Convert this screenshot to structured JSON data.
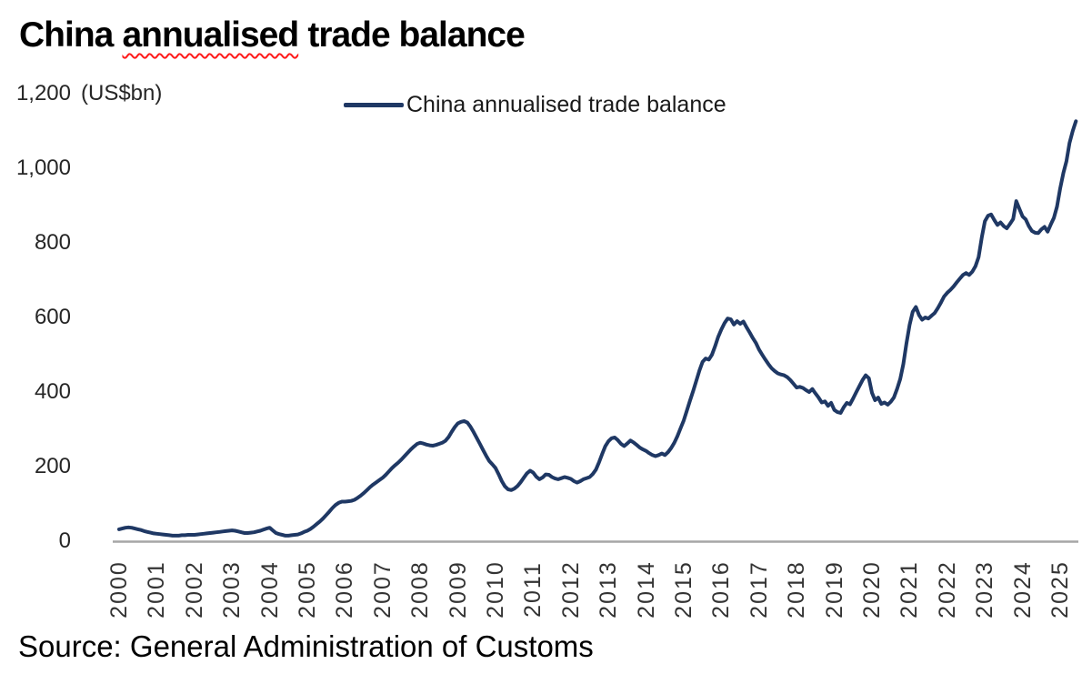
{
  "title": {
    "prefix": "China",
    "misspelled": "annualised",
    "suffix": "trade balance"
  },
  "unit_label": "(US$bn)",
  "legend": {
    "label": "China annualised trade balance"
  },
  "source": "Source: General Administration of Customs",
  "colors": {
    "line": "#1F3864",
    "axis": "#A6A6A6",
    "squiggle": "#FF1A1A",
    "title_text": "#000000",
    "tick_text": "#303030"
  },
  "chart_data": {
    "type": "line",
    "title": "China annualised trade balance",
    "ylabel": "(US$bn)",
    "xlabel": "",
    "ylim": [
      0,
      1200
    ],
    "grid": false,
    "legend_position": "top-center",
    "y_ticks": [
      0,
      200,
      400,
      600,
      800,
      1000,
      1200
    ],
    "x_ticks": [
      "2000",
      "2001",
      "2002",
      "2003",
      "2004",
      "2005",
      "2006",
      "2007",
      "2008",
      "2009",
      "2010",
      "2011",
      "2012",
      "2013",
      "2014",
      "2015",
      "2016",
      "2017",
      "2018",
      "2019",
      "2020",
      "2021",
      "2022",
      "2023",
      "2024",
      "2025"
    ],
    "x_start_year": 2000,
    "points_per_year": 12,
    "x_tick_rotation": -90,
    "series": [
      {
        "name": "China annualised trade balance",
        "values": [
          32,
          34,
          36,
          37,
          36,
          34,
          32,
          30,
          27,
          25,
          23,
          21,
          20,
          19,
          18,
          17,
          16,
          15,
          15,
          15,
          16,
          16,
          17,
          17,
          17,
          18,
          19,
          20,
          21,
          22,
          23,
          24,
          25,
          26,
          27,
          28,
          29,
          28,
          26,
          24,
          22,
          22,
          23,
          24,
          26,
          28,
          31,
          34,
          36,
          29,
          22,
          19,
          17,
          15,
          15,
          16,
          17,
          18,
          21,
          25,
          28,
          33,
          39,
          46,
          53,
          61,
          70,
          79,
          89,
          97,
          103,
          106,
          106,
          107,
          108,
          111,
          116,
          122,
          129,
          137,
          145,
          152,
          158,
          164,
          170,
          178,
          187,
          196,
          204,
          211,
          219,
          228,
          237,
          246,
          254,
          261,
          264,
          262,
          259,
          257,
          256,
          258,
          261,
          264,
          269,
          279,
          293,
          306,
          316,
          320,
          322,
          318,
          307,
          293,
          277,
          261,
          245,
          229,
          215,
          206,
          196,
          179,
          161,
          147,
          139,
          137,
          141,
          148,
          158,
          170,
          182,
          189,
          184,
          173,
          166,
          171,
          179,
          178,
          172,
          168,
          166,
          169,
          172,
          170,
          167,
          161,
          157,
          161,
          166,
          169,
          172,
          180,
          192,
          212,
          234,
          255,
          268,
          276,
          278,
          271,
          261,
          255,
          262,
          270,
          265,
          258,
          251,
          246,
          242,
          236,
          231,
          228,
          231,
          235,
          231,
          239,
          250,
          264,
          282,
          303,
          324,
          350,
          377,
          403,
          430,
          458,
          481,
          490,
          487,
          500,
          523,
          548,
          568,
          585,
          597,
          595,
          581,
          590,
          583,
          589,
          574,
          560,
          545,
          532,
          514,
          500,
          487,
          475,
          464,
          456,
          450,
          447,
          445,
          440,
          432,
          422,
          412,
          414,
          411,
          405,
          400,
          408,
          396,
          385,
          372,
          375,
          363,
          371,
          352,
          346,
          344,
          359,
          371,
          367,
          383,
          400,
          416,
          432,
          445,
          437,
          398,
          378,
          385,
          368,
          372,
          366,
          374,
          385,
          408,
          435,
          475,
          530,
          580,
          615,
          628,
          606,
          594,
          600,
          597,
          605,
          612,
          625,
          640,
          656,
          666,
          674,
          683,
          694,
          704,
          714,
          719,
          714,
          723,
          737,
          762,
          815,
          858,
          873,
          876,
          861,
          848,
          855,
          845,
          839,
          851,
          864,
          912,
          891,
          871,
          863,
          845,
          832,
          827,
          826,
          836,
          843,
          830,
          849,
          867,
          897,
          946,
          987,
          1019,
          1068,
          1100,
          1126
        ]
      }
    ]
  }
}
